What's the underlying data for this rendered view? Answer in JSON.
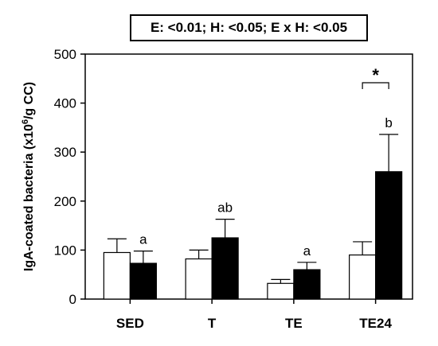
{
  "stats_text": "E: <0.01; H: <0.05; E x H: <0.05",
  "chart_data": {
    "type": "bar",
    "ylabel": "IgA-coated bacteria (x10⁶/g CC)",
    "xlabel": "",
    "ylim": [
      0,
      500
    ],
    "yticks": [
      0,
      100,
      200,
      300,
      400,
      500
    ],
    "categories": [
      "SED",
      "T",
      "TE",
      "TE24"
    ],
    "series": [
      {
        "fill": "#ffffff",
        "values": [
          95,
          82,
          32,
          90
        ],
        "errors": [
          28,
          18,
          8,
          27
        ]
      },
      {
        "fill": "#000000",
        "values": [
          73,
          125,
          60,
          260
        ],
        "errors": [
          25,
          38,
          15,
          76
        ]
      }
    ],
    "significance_letters": [
      "a",
      "ab",
      "a",
      "b"
    ],
    "bracket": {
      "category": "TE24",
      "symbol": "*"
    }
  }
}
